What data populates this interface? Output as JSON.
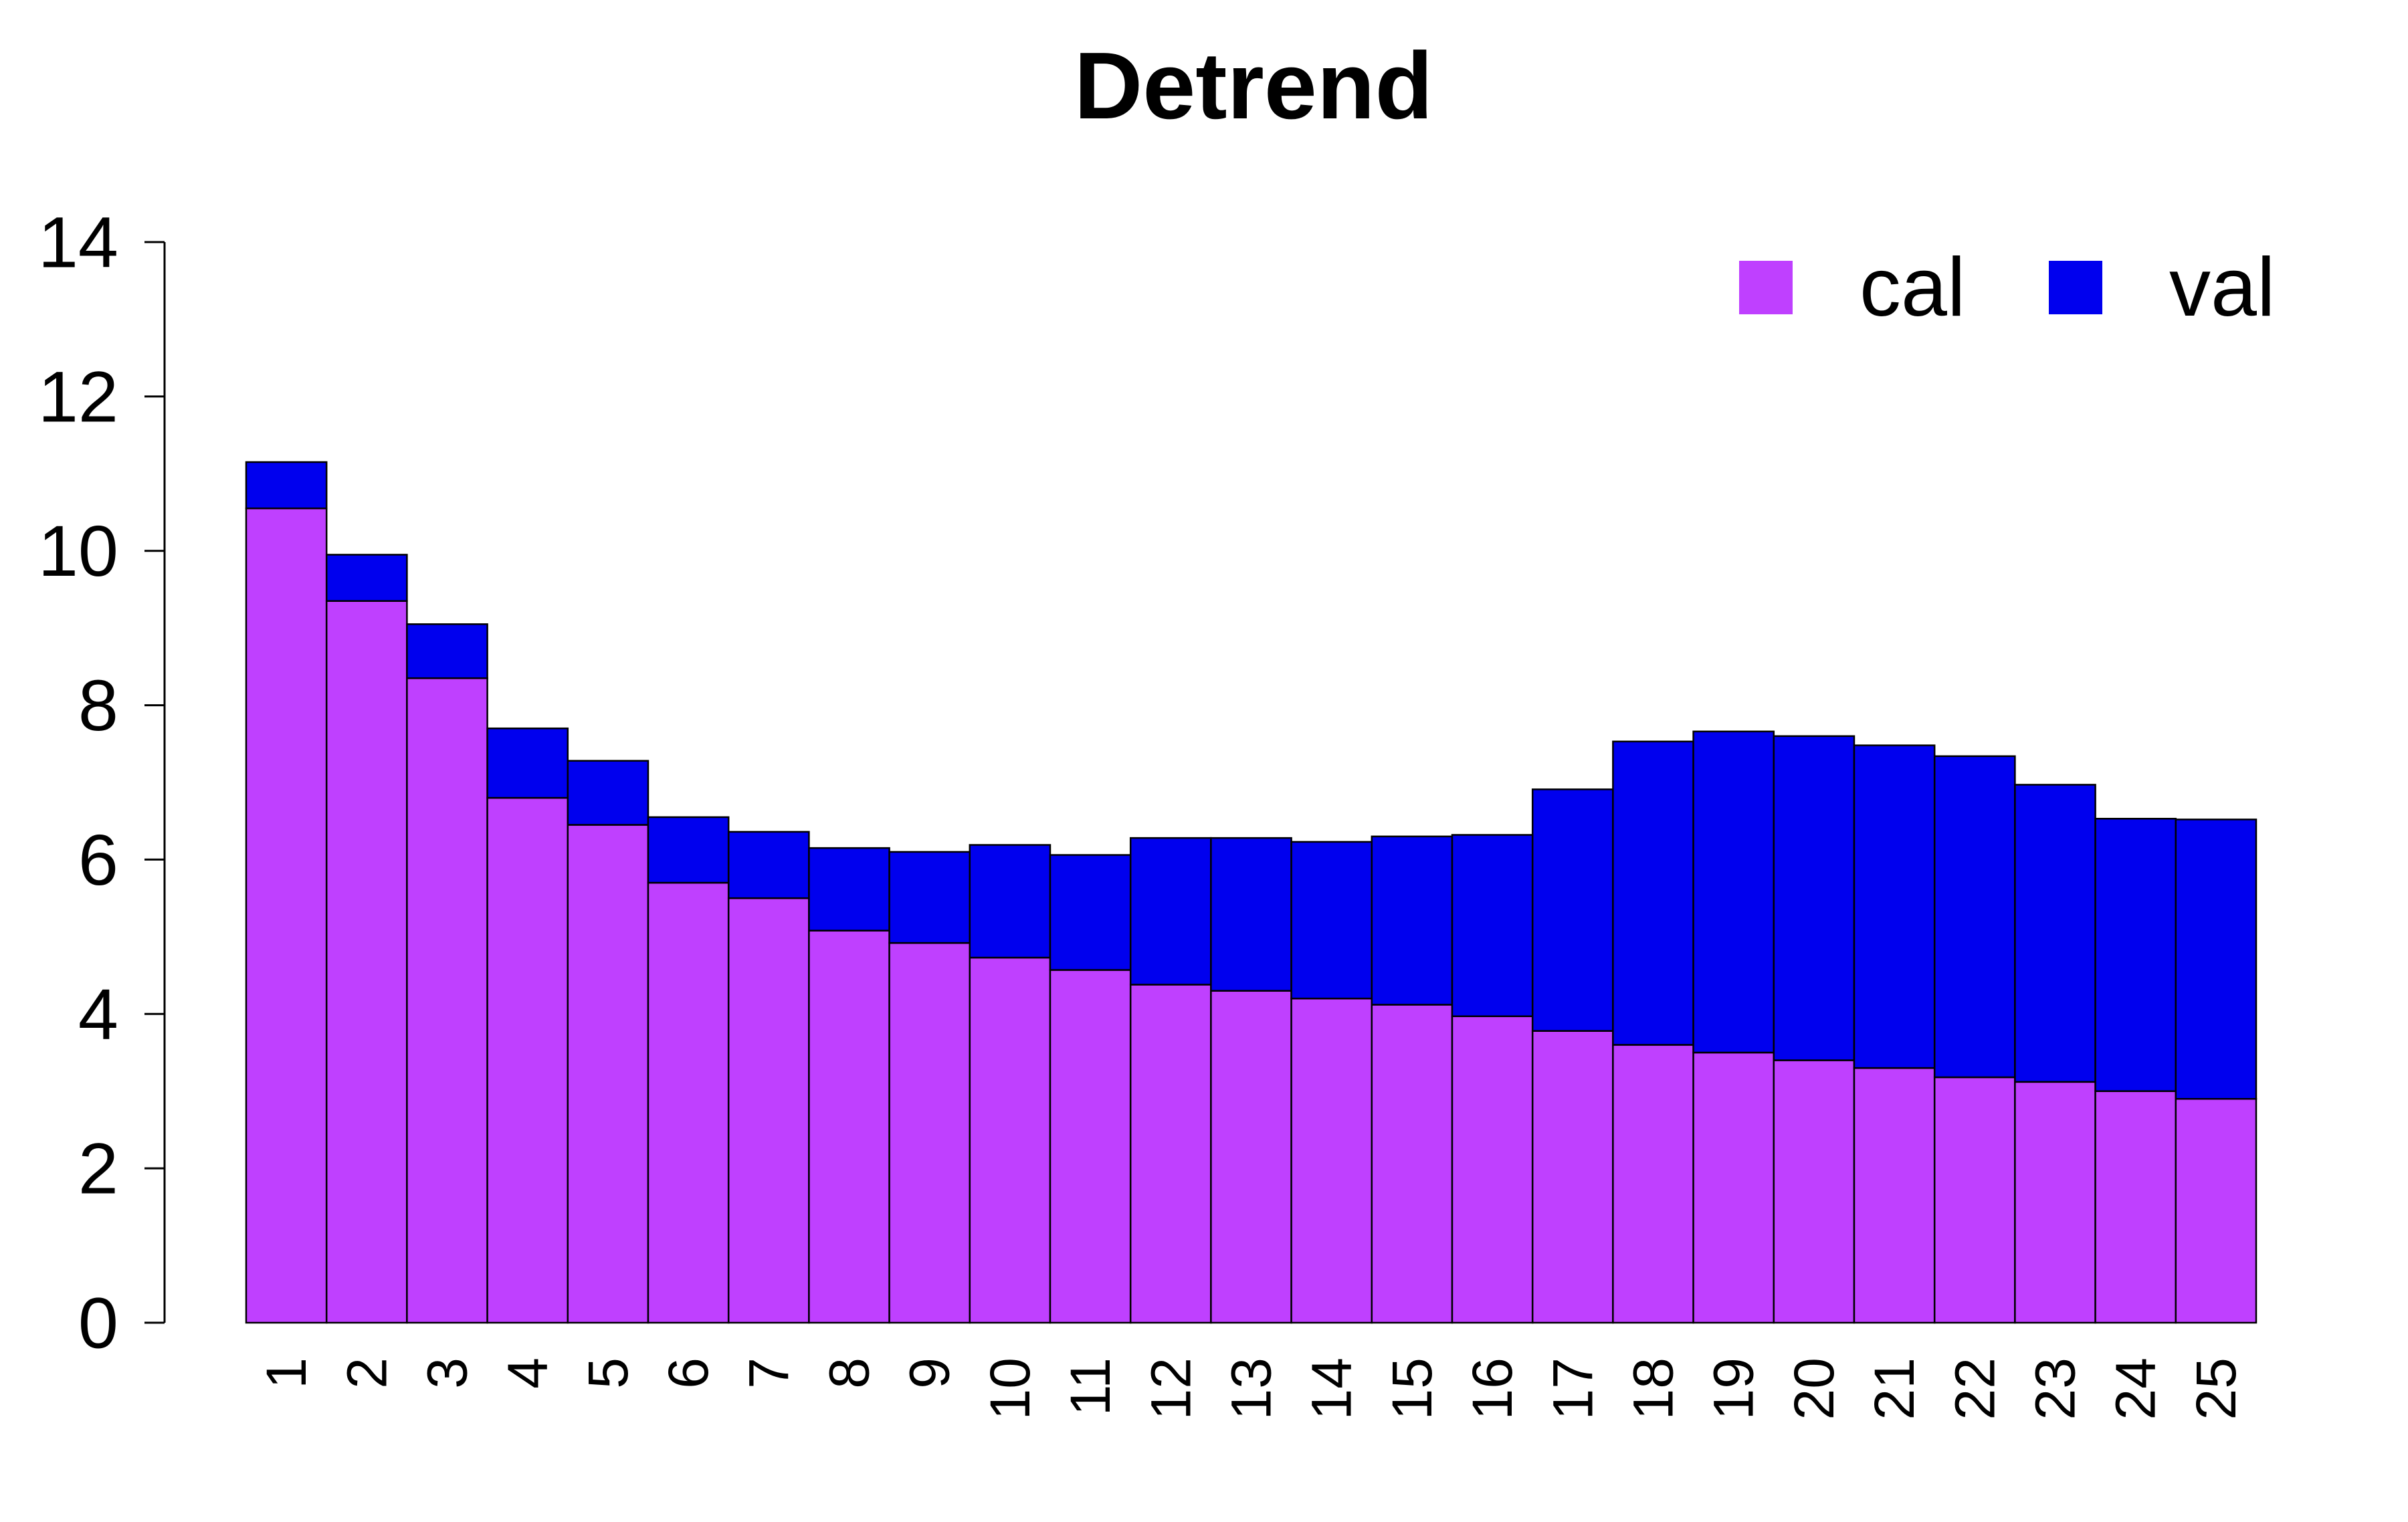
{
  "chart_data": {
    "type": "bar",
    "stacked": true,
    "title": "Detrend",
    "xlabel": "",
    "ylabel": "",
    "ylim": [
      0,
      14
    ],
    "yticks": [
      "0",
      "2",
      "4",
      "6",
      "8",
      "10",
      "12",
      "14"
    ],
    "grid": false,
    "legend_position": "top-right",
    "categories": [
      "1",
      "2",
      "3",
      "4",
      "5",
      "6",
      "7",
      "8",
      "9",
      "10",
      "11",
      "12",
      "13",
      "14",
      "15",
      "16",
      "17",
      "18",
      "19",
      "20",
      "21",
      "22",
      "23",
      "24",
      "25"
    ],
    "series": [
      {
        "name": "cal",
        "color": "#BF40FF",
        "values": [
          10.55,
          9.35,
          8.35,
          6.8,
          6.45,
          5.7,
          5.5,
          5.08,
          4.92,
          4.73,
          4.57,
          4.38,
          4.3,
          4.2,
          4.12,
          3.97,
          3.78,
          3.6,
          3.5,
          3.4,
          3.3,
          3.18,
          3.12,
          3.0,
          2.9
        ]
      },
      {
        "name": "val",
        "color": "#0000EE",
        "values": [
          0.6,
          0.6,
          0.7,
          0.9,
          0.83,
          0.85,
          0.86,
          1.07,
          1.18,
          1.46,
          1.49,
          1.9,
          1.98,
          2.03,
          2.18,
          2.35,
          3.13,
          3.93,
          4.16,
          4.2,
          4.18,
          4.16,
          3.85,
          3.53,
          3.62
        ]
      }
    ]
  }
}
